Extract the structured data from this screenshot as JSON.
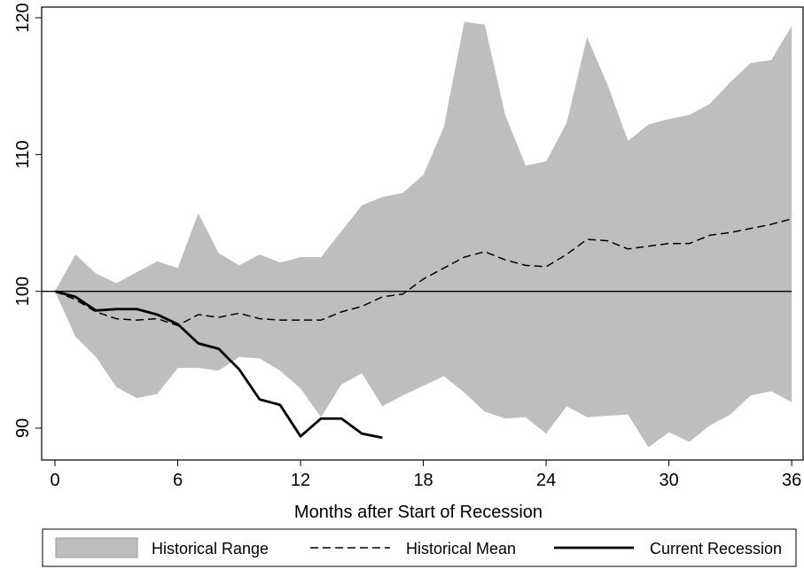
{
  "chart_data": {
    "type": "range-line",
    "x_label": "Months after Start of Recession",
    "x": [
      0,
      1,
      2,
      3,
      4,
      5,
      6,
      7,
      8,
      9,
      10,
      11,
      12,
      13,
      14,
      15,
      16,
      17,
      18,
      19,
      20,
      21,
      22,
      23,
      24,
      25,
      26,
      27,
      28,
      29,
      30,
      31,
      32,
      33,
      34,
      35,
      36
    ],
    "xlim": [
      -0.65,
      36.6
    ],
    "xticks": [
      0,
      6,
      12,
      18,
      24,
      30,
      36
    ],
    "ylim": [
      87.67,
      120.78
    ],
    "yticks": [
      90,
      100,
      110,
      120
    ],
    "reference_line": 100,
    "series": [
      {
        "name": "Historical Range",
        "kind": "range",
        "color": "#bebebe",
        "upper": [
          100,
          102.7,
          101.3,
          100.6,
          101.4,
          102.2,
          101.7,
          105.7,
          102.8,
          101.9,
          102.7,
          102.1,
          102.5,
          102.5,
          104.4,
          106.3,
          106.9,
          107.2,
          108.5,
          112,
          119.7,
          119.5,
          112.9,
          109.2,
          109.5,
          112.3,
          118.6,
          115.1,
          111,
          112.2,
          112.6,
          112.9,
          113.7,
          115.3,
          116.7,
          116.9,
          119.4
        ],
        "lower": [
          100,
          96.7,
          95.2,
          93.0,
          92.2,
          92.5,
          94.4,
          94.4,
          94.2,
          95.2,
          95.1,
          94.2,
          92.9,
          90.8,
          93.2,
          94.0,
          91.6,
          92.4,
          93.1,
          93.8,
          92.6,
          91.2,
          90.7,
          90.8,
          89.6,
          91.6,
          90.8,
          90.9,
          91.0,
          88.6,
          89.7,
          89.0,
          90.2,
          91.0,
          92.4,
          92.7,
          91.9
        ]
      },
      {
        "name": "Historical Mean",
        "kind": "line",
        "dashed": true,
        "color": "#000000",
        "values": [
          100,
          99.4,
          98.5,
          98.0,
          97.9,
          98.0,
          97.5,
          98.3,
          98.1,
          98.4,
          98.0,
          97.9,
          97.9,
          97.9,
          98.5,
          98.9,
          99.6,
          99.8,
          100.9,
          101.7,
          102.5,
          102.9,
          102.3,
          101.9,
          101.8,
          102.7,
          103.8,
          103.7,
          103.1,
          103.3,
          103.5,
          103.5,
          104.1,
          104.3,
          104.6,
          104.9,
          105.3
        ]
      },
      {
        "name": "Current Recession",
        "kind": "line",
        "dashed": false,
        "color": "#000000",
        "values": [
          100,
          99.6,
          98.6,
          98.7,
          98.7,
          98.3,
          97.6,
          96.2,
          95.8,
          94.3,
          92.1,
          91.7,
          89.4,
          90.7,
          90.7,
          89.6,
          89.3,
          null,
          null,
          null,
          null,
          null,
          null,
          null,
          null,
          null,
          null,
          null,
          null,
          null,
          null,
          null,
          null,
          null,
          null,
          null,
          null
        ]
      }
    ]
  }
}
